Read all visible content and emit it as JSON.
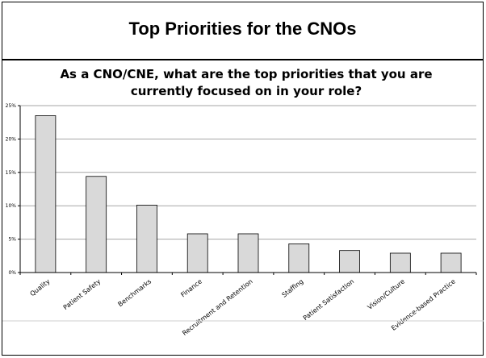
{
  "slide": {
    "title": "Top Priorities for the CNOs"
  },
  "chart_data": {
    "type": "bar",
    "title_line1": "As a CNO/CNE, what are the top priorities that you are",
    "title_line2": "currently focused on in your role?",
    "categories": [
      "Quality",
      "Patient Safety",
      "Benchmarks",
      "Finance",
      "Recruitment and Retention",
      "Staffing",
      "Patient Satisfaction",
      "Vision/Culture",
      "Evidence-based Practice"
    ],
    "values": [
      23.5,
      14.4,
      10.1,
      5.8,
      5.8,
      4.3,
      3.3,
      2.9,
      2.9
    ],
    "y_ticks": [
      "0%",
      "5%",
      "10%",
      "15%",
      "20%",
      "25%"
    ],
    "ylim": [
      0,
      25
    ],
    "grid": true,
    "bar_color": "#d9d9d9",
    "bar_stroke": "#000000",
    "grid_color": "#a6a6a6"
  }
}
